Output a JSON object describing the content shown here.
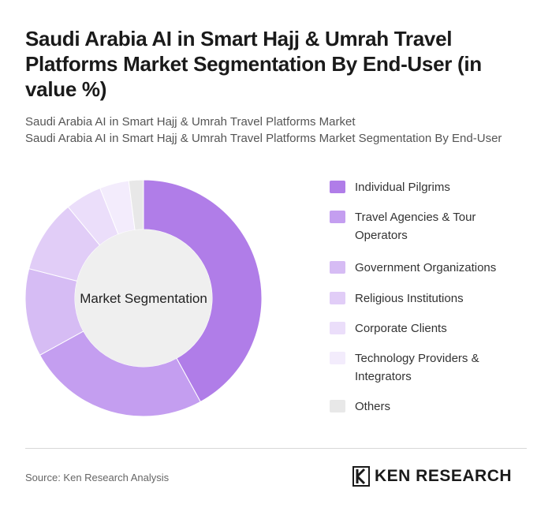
{
  "header": {
    "title": "Saudi Arabia AI in Smart Hajj & Umrah Travel Platforms Market Segmentation By End-User (in value %)",
    "subtitle_1": "Saudi Arabia AI in Smart Hajj & Umrah Travel Platforms Market",
    "subtitle_2": "Saudi Arabia AI in Smart Hajj & Umrah Travel Platforms Market Segmentation By End-User"
  },
  "chart_data": {
    "type": "pie",
    "donut": true,
    "center_label": "Market Segmentation",
    "legend_position": "right",
    "categories": [
      "Individual Pilgrims",
      "Travel Agencies & Tour Operators",
      "Government Organizations",
      "Religious Institutions",
      "Corporate Clients",
      "Technology Providers & Integrators",
      "Others"
    ],
    "values": [
      42,
      25,
      12,
      10,
      5,
      4,
      2
    ],
    "colors": [
      "#b07de8",
      "#c49ef0",
      "#d6bcf4",
      "#e1cdf7",
      "#ebdefa",
      "#f3ecfc",
      "#e8e8e8"
    ]
  },
  "footer": {
    "source": "Source: Ken Research Analysis",
    "brand": "KEN RESEARCH"
  }
}
